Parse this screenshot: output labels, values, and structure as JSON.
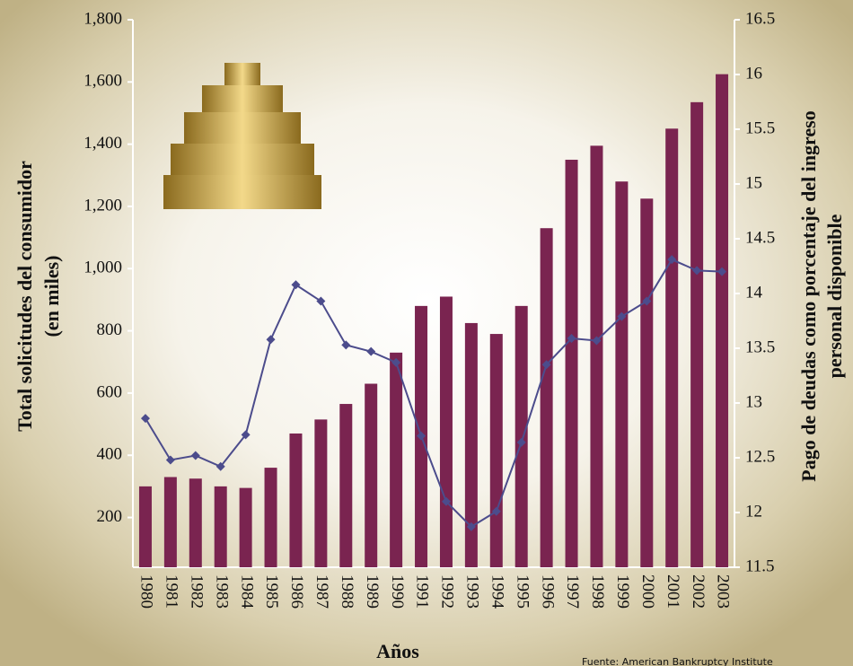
{
  "chart_data": {
    "type": "bar-line",
    "y_title": [
      "Total solicitudes del consumidor",
      "(en miles)"
    ],
    "y2_title": [
      "Pago de deudas como porcentaje del ingreso",
      "personal disponible"
    ],
    "x_title": "Años",
    "source": "Fuente: American Bankruptcy Institute",
    "categories": [
      "1980",
      "1981",
      "1982",
      "1983",
      "1984",
      "1985",
      "1986",
      "1987",
      "1988",
      "1989",
      "1990",
      "1991",
      "1992",
      "1993",
      "1994",
      "1995",
      "1996",
      "1997",
      "1998",
      "1999",
      "2000",
      "2001",
      "2002",
      "2003"
    ],
    "series": [
      {
        "type": "bar",
        "color": "#7a2450",
        "values": [
          300,
          330,
          325,
          300,
          295,
          360,
          470,
          515,
          565,
          630,
          730,
          880,
          910,
          825,
          790,
          880,
          1130,
          1350,
          1395,
          1280,
          1225,
          1450,
          1535,
          1625
        ]
      },
      {
        "type": "line",
        "axis": "y2",
        "color": "#4c4c8c",
        "values": [
          12.86,
          12.48,
          12.52,
          12.42,
          12.71,
          13.58,
          14.08,
          13.93,
          13.53,
          13.47,
          13.37,
          12.7,
          12.1,
          11.87,
          12.01,
          12.64,
          13.35,
          13.59,
          13.57,
          13.79,
          13.93,
          14.31,
          14.21,
          14.2
        ]
      }
    ],
    "ylim": [
      40,
      1800
    ],
    "yticks": [
      {
        "value": 200,
        "label": "200"
      },
      {
        "value": 400,
        "label": "400"
      },
      {
        "value": 600,
        "label": "600"
      },
      {
        "value": 800,
        "label": "800"
      },
      {
        "value": 1000,
        "label": "1,000"
      },
      {
        "value": 1200,
        "label": "1,200"
      },
      {
        "value": 1400,
        "label": "1,400"
      },
      {
        "value": 1600,
        "label": "1,600"
      },
      {
        "value": 1800,
        "label": "1,800"
      }
    ],
    "y2lim": [
      11.5,
      16.5
    ],
    "y2ticks": [
      11.5,
      12,
      12.5,
      13,
      13.5,
      14,
      14.5,
      15,
      15.5,
      16,
      16.5
    ]
  }
}
